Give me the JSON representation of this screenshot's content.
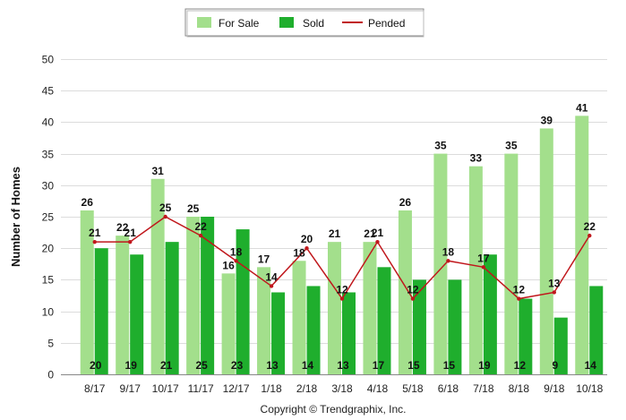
{
  "chart_data": {
    "type": "bar",
    "categories": [
      "8/17",
      "9/17",
      "10/17",
      "11/17",
      "12/17",
      "1/18",
      "2/18",
      "3/18",
      "4/18",
      "5/18",
      "6/18",
      "7/18",
      "8/18",
      "9/18",
      "10/18"
    ],
    "series": [
      {
        "name": "For Sale",
        "type": "bar",
        "color": "#a3df8c",
        "values": [
          26,
          22,
          31,
          25,
          16,
          17,
          18,
          21,
          21,
          26,
          35,
          33,
          35,
          39,
          41
        ]
      },
      {
        "name": "Sold",
        "type": "bar",
        "color": "#1fae2d",
        "values": [
          20,
          19,
          21,
          25,
          23,
          13,
          14,
          13,
          17,
          15,
          15,
          19,
          12,
          9,
          14
        ]
      },
      {
        "name": "Pended",
        "type": "line",
        "color": "#c0171c",
        "values": [
          21,
          21,
          25,
          22,
          18,
          14,
          20,
          12,
          21,
          12,
          18,
          17,
          12,
          13,
          22
        ]
      }
    ],
    "ylabel": "Number of Homes",
    "ylim": [
      0,
      50
    ],
    "yticks": [
      0,
      5,
      10,
      15,
      20,
      25,
      30,
      35,
      40,
      45,
      50
    ],
    "grid": true,
    "legend": "top-center",
    "footer": "Copyright © Trendgraphix, Inc."
  }
}
